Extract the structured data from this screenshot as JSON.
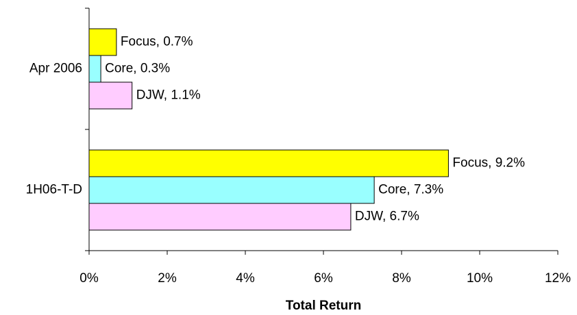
{
  "chart_data": {
    "type": "bar",
    "orientation": "horizontal",
    "categories": [
      "1H06-T-D",
      "Apr 2006"
    ],
    "series": [
      {
        "name": "DJW",
        "color": "#ffccff",
        "values": [
          6.7,
          1.1
        ],
        "value_labels": [
          "DJW, 6.7%",
          "DJW, 1.1%"
        ]
      },
      {
        "name": "Core",
        "color": "#99ffff",
        "values": [
          7.3,
          0.3
        ],
        "value_labels": [
          "Core, 7.3%",
          "Core, 0.3%"
        ]
      },
      {
        "name": "Focus",
        "color": "#ffff00",
        "values": [
          9.2,
          0.7
        ],
        "value_labels": [
          "Focus, 9.2%",
          "Focus, 0.7%"
        ]
      }
    ],
    "xlabel": "Total Return",
    "xlim": [
      0,
      12
    ],
    "xticks": [
      {
        "value": 0,
        "label": "0%"
      },
      {
        "value": 2,
        "label": "2%"
      },
      {
        "value": 4,
        "label": "4%"
      },
      {
        "value": 6,
        "label": "6%"
      },
      {
        "value": 8,
        "label": "8%"
      },
      {
        "value": 10,
        "label": "10%"
      },
      {
        "value": 12,
        "label": "12%"
      }
    ],
    "grid": false
  }
}
